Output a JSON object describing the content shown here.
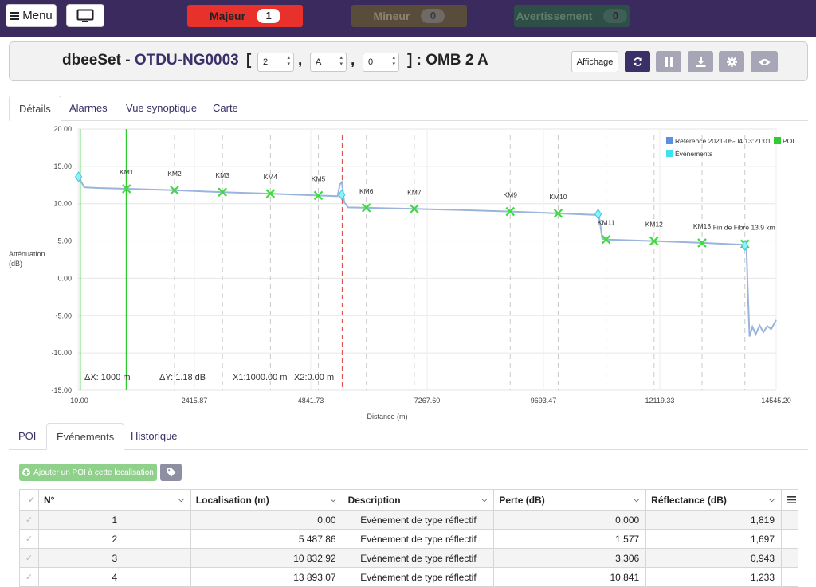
{
  "topbar": {
    "menu_label": "Menu",
    "alarms": [
      {
        "label": "Majeur",
        "count": "1"
      },
      {
        "label": "Mineur",
        "count": "0"
      },
      {
        "label": "Avertissement",
        "count": "0"
      }
    ]
  },
  "header": {
    "prefix": "dbeeSet - ",
    "device": "OTDU-NG0003",
    "bracket_open": "[",
    "sep1": ",",
    "sep2": ",",
    "bracket_close": "] : OMB 2 A",
    "selects": [
      "2",
      "A",
      "0"
    ],
    "affichage_label": "Affichage"
  },
  "tabs": [
    "Détails",
    "Alarmes",
    "Vue synoptique",
    "Carte"
  ],
  "chart_data": {
    "type": "line",
    "ylabel": "Atténuation\n(dB)",
    "xlabel": "Distance (m)",
    "ylim": [
      -15,
      20
    ],
    "xlim": [
      -10,
      14545.2
    ],
    "y_ticks": [
      "20.00",
      "15.00",
      "10.00",
      "5.00",
      "0.00",
      "-5.00",
      "-10.00",
      "-15.00"
    ],
    "x_ticks": [
      "-10.00",
      "2415.87",
      "4841.73",
      "7267.60",
      "9693.47",
      "12119.33",
      "14545.20"
    ],
    "legend": [
      {
        "name": "Référence 2021-05-04 13:21:01",
        "color": "#5b8fe0"
      },
      {
        "name": "POI",
        "color": "#2ecc2e"
      },
      {
        "name": "Événements",
        "color": "#3fe0f0"
      }
    ],
    "trace_color": "#9ab4dc",
    "series": [
      {
        "name": "Référence 2021-05-04 13:21:01",
        "x": [
          -10,
          20,
          50,
          120,
          400,
          1000,
          2000,
          3000,
          4000,
          5000,
          5400,
          5450,
          5490,
          5540,
          5620,
          6000,
          7000,
          8000,
          9000,
          10000,
          10780,
          10840,
          10920,
          11000,
          12000,
          13000,
          13880,
          13905,
          13925,
          13950,
          13990,
          14050,
          14120,
          14200,
          14280,
          14360,
          14440,
          14545
        ],
        "y": [
          14.0,
          13.8,
          13.0,
          12.2,
          12.1,
          12.0,
          11.8,
          11.55,
          11.35,
          11.1,
          11.0,
          12.6,
          12.9,
          10.2,
          9.5,
          9.45,
          9.3,
          9.15,
          8.95,
          8.7,
          8.5,
          8.9,
          5.3,
          5.2,
          5.0,
          4.75,
          4.5,
          5.1,
          4.3,
          -1.0,
          -7.8,
          -6.5,
          -7.5,
          -6.3,
          -7.2,
          -6.4,
          -6.8,
          -5.6
        ]
      }
    ],
    "poi_markers": [
      {
        "label": "KM1",
        "x": 1000,
        "y": 12.0
      },
      {
        "label": "KM2",
        "x": 2000,
        "y": 11.8
      },
      {
        "label": "KM3",
        "x": 3000,
        "y": 11.55
      },
      {
        "label": "KM4",
        "x": 4000,
        "y": 11.35
      },
      {
        "label": "KM5",
        "x": 5000,
        "y": 11.1
      },
      {
        "label": "KM6",
        "x": 6000,
        "y": 9.45
      },
      {
        "label": "KM7",
        "x": 7000,
        "y": 9.3
      },
      {
        "label": "KM9",
        "x": 9000,
        "y": 8.95
      },
      {
        "label": "KM10",
        "x": 10000,
        "y": 8.7
      },
      {
        "label": "KM11",
        "x": 11000,
        "y": 5.2
      },
      {
        "label": "KM12",
        "x": 12000,
        "y": 5.0
      },
      {
        "label": "KM13",
        "x": 13000,
        "y": 4.75
      },
      {
        "label": "Fin de Fibre 13.9 km",
        "x": 13893,
        "y": 4.6
      }
    ],
    "event_markers": [
      {
        "x": 0,
        "y": 13.6
      },
      {
        "x": 5488,
        "y": 11.2
      },
      {
        "x": 10833,
        "y": 8.6
      },
      {
        "x": 13893,
        "y": 4.4
      }
    ],
    "cursor_x1": 1000,
    "cursor_x2": 0,
    "cursor_red_x": 5500,
    "readouts": {
      "dx": "ΔX: 1000 m",
      "dy": "ΔY: 1.18 dB",
      "x1": "X1:1000.00 m",
      "x2": "X2:0.00 m"
    }
  },
  "bottom_tabs": [
    "POI",
    "Événements",
    "Historique"
  ],
  "actions": {
    "add_poi_label": "Ajouter un POI à cette localisation"
  },
  "table": {
    "columns": [
      "N°",
      "Localisation (m)",
      "Description",
      "Perte (dB)",
      "Réflectance (dB)"
    ],
    "rows": [
      [
        "1",
        "0,00",
        "Evénement de type réflectif",
        "0,000",
        "1,819"
      ],
      [
        "2",
        "5 487,86",
        "Evénement de type réflectif",
        "1,577",
        "1,697"
      ],
      [
        "3",
        "10 832,92",
        "Evénement de type réflectif",
        "3,306",
        "0,943"
      ],
      [
        "4",
        "13 893,07",
        "Evénement de type réflectif",
        "10,841",
        "1,233"
      ]
    ]
  }
}
